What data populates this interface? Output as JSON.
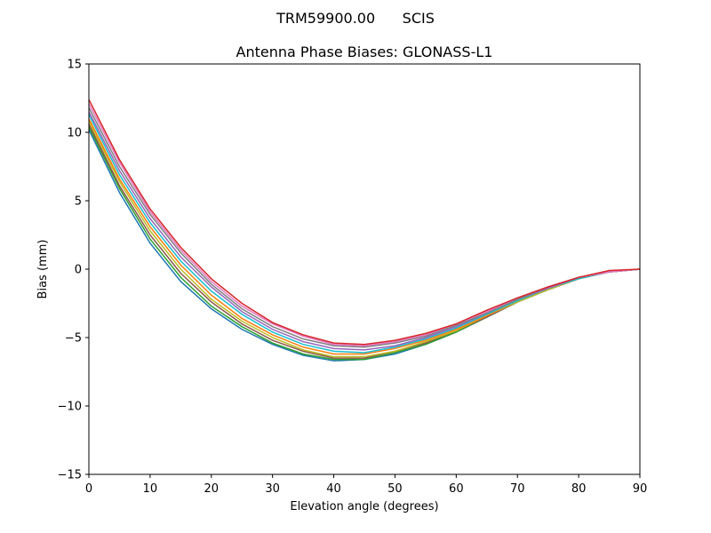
{
  "chart_data": {
    "type": "line",
    "suptitle": "TRM59900.00      SCIS",
    "title": "Antenna Phase Biases: GLONASS-L1",
    "xlabel": "Elevation angle (degrees)",
    "ylabel": "Bias (mm)",
    "xlim": [
      0,
      90
    ],
    "ylim": [
      -15,
      15
    ],
    "xticks": [
      0,
      10,
      20,
      30,
      40,
      50,
      60,
      70,
      80,
      90
    ],
    "yticks": [
      -15,
      -10,
      -5,
      0,
      5,
      10,
      15
    ],
    "x": [
      0,
      5,
      10,
      15,
      20,
      25,
      30,
      35,
      40,
      45,
      50,
      55,
      60,
      65,
      70,
      75,
      80,
      85,
      90
    ],
    "grid": false,
    "legend": "none",
    "series": [
      {
        "color": "#1f77b4",
        "values": [
          10.2,
          5.6,
          1.9,
          -0.9,
          -2.9,
          -4.4,
          -5.5,
          -6.3,
          -6.7,
          -6.6,
          -6.2,
          -5.5,
          -4.6,
          -3.5,
          -2.4,
          -1.5,
          -0.7,
          -0.2,
          0.0
        ]
      },
      {
        "color": "#2ca02c",
        "values": [
          10.4,
          5.9,
          2.2,
          -0.6,
          -2.7,
          -4.2,
          -5.4,
          -6.2,
          -6.6,
          -6.6,
          -6.1,
          -5.5,
          -4.6,
          -3.5,
          -2.4,
          -1.5,
          -0.7,
          -0.2,
          0.0
        ]
      },
      {
        "color": "#8c564b",
        "values": [
          10.6,
          6.1,
          2.5,
          -0.3,
          -2.4,
          -4.0,
          -5.2,
          -6.0,
          -6.5,
          -6.5,
          -6.0,
          -5.4,
          -4.5,
          -3.5,
          -2.4,
          -1.5,
          -0.7,
          -0.2,
          0.0
        ]
      },
      {
        "color": "#bcbd22",
        "values": [
          10.8,
          6.4,
          2.8,
          0.0,
          -2.2,
          -3.8,
          -5.0,
          -5.9,
          -6.4,
          -6.4,
          -6.0,
          -5.3,
          -4.5,
          -3.4,
          -2.4,
          -1.5,
          -0.7,
          -0.2,
          0.0
        ]
      },
      {
        "color": "#ff7f0e",
        "values": [
          11.0,
          6.6,
          3.1,
          0.3,
          -1.9,
          -3.6,
          -4.8,
          -5.7,
          -6.2,
          -6.2,
          -5.8,
          -5.2,
          -4.4,
          -3.4,
          -2.3,
          -1.4,
          -0.7,
          -0.2,
          0.0
        ]
      },
      {
        "color": "#17becf",
        "values": [
          11.3,
          6.9,
          3.4,
          0.6,
          -1.6,
          -3.3,
          -4.6,
          -5.5,
          -6.0,
          -6.1,
          -5.7,
          -5.1,
          -4.3,
          -3.3,
          -2.3,
          -1.4,
          -0.7,
          -0.2,
          0.0
        ]
      },
      {
        "color": "#9467bd",
        "values": [
          11.5,
          7.2,
          3.7,
          0.9,
          -1.3,
          -3.1,
          -4.4,
          -5.3,
          -5.8,
          -5.9,
          -5.6,
          -5.0,
          -4.2,
          -3.2,
          -2.2,
          -1.4,
          -0.6,
          -0.2,
          0.0
        ]
      },
      {
        "color": "#7f7f7f",
        "values": [
          11.8,
          7.5,
          4.0,
          1.2,
          -1.1,
          -2.9,
          -4.2,
          -5.1,
          -5.6,
          -5.7,
          -5.4,
          -4.9,
          -4.1,
          -3.2,
          -2.2,
          -1.3,
          -0.6,
          -0.2,
          0.0
        ]
      },
      {
        "color": "#e377c2",
        "values": [
          12.1,
          7.8,
          4.2,
          1.4,
          -0.9,
          -2.7,
          -4.0,
          -4.9,
          -5.5,
          -5.6,
          -5.3,
          -4.8,
          -4.0,
          -3.1,
          -2.1,
          -1.3,
          -0.6,
          -0.2,
          0.0
        ]
      },
      {
        "color": "#d62728",
        "values": [
          12.4,
          8.0,
          4.4,
          1.6,
          -0.7,
          -2.5,
          -3.9,
          -4.8,
          -5.4,
          -5.5,
          -5.2,
          -4.7,
          -4.0,
          -3.0,
          -2.1,
          -1.3,
          -0.6,
          -0.1,
          0.0
        ]
      }
    ]
  }
}
